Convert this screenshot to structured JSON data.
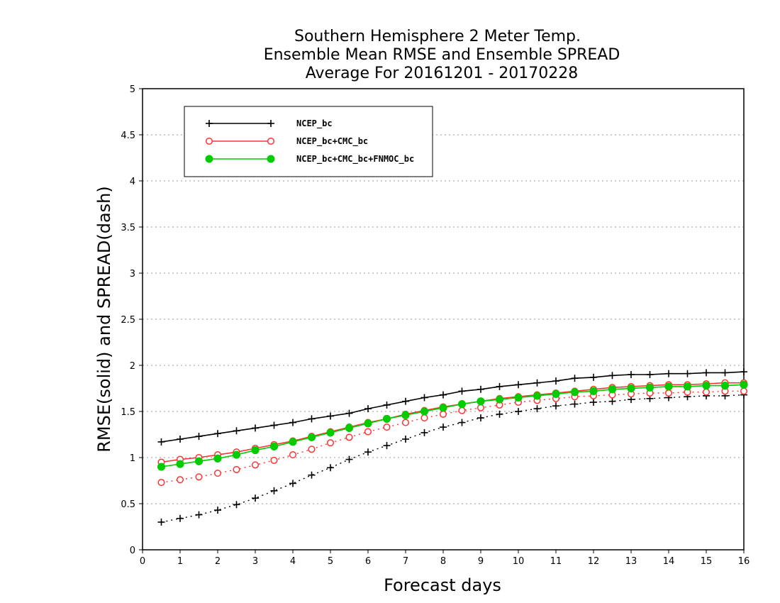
{
  "chart_data": {
    "type": "line",
    "title": [
      "Southern Hemisphere 2 Meter Temp.",
      "Ensemble Mean RMSE and Ensemble SPREAD",
      "Average For 20161201 - 20170228"
    ],
    "xlabel": "Forecast days",
    "ylabel": "RMSE(solid) and SPREAD(dash)",
    "xlim": [
      0,
      16
    ],
    "ylim": [
      0,
      5
    ],
    "xticks": [
      "0",
      "1",
      "2",
      "3",
      "4",
      "5",
      "6",
      "7",
      "8",
      "9",
      "10",
      "11",
      "12",
      "13",
      "14",
      "15",
      "16"
    ],
    "yticks": [
      "0",
      "0.5",
      "1",
      "1.5",
      "2",
      "2.5",
      "3",
      "3.5",
      "4",
      "4.5",
      "5"
    ],
    "grid": "horizontal dotted",
    "legend_position": "top-left",
    "x": [
      0.5,
      1,
      1.5,
      2,
      2.5,
      3,
      3.5,
      4,
      4.5,
      5,
      5.5,
      6,
      6.5,
      7,
      7.5,
      8,
      8.5,
      9,
      9.5,
      10,
      10.5,
      11,
      11.5,
      12,
      12.5,
      13,
      13.5,
      14,
      14.5,
      15,
      15.5,
      16
    ],
    "series": [
      {
        "name": "NCEP_bc",
        "color": "#000000",
        "marker": "plus",
        "rmse": [
          1.17,
          1.2,
          1.23,
          1.26,
          1.29,
          1.32,
          1.35,
          1.38,
          1.42,
          1.45,
          1.48,
          1.53,
          1.57,
          1.61,
          1.65,
          1.68,
          1.72,
          1.74,
          1.77,
          1.79,
          1.81,
          1.83,
          1.86,
          1.87,
          1.89,
          1.9,
          1.9,
          1.91,
          1.91,
          1.92,
          1.92,
          1.93
        ],
        "spread": [
          0.3,
          0.34,
          0.38,
          0.43,
          0.49,
          0.56,
          0.64,
          0.72,
          0.81,
          0.89,
          0.98,
          1.06,
          1.13,
          1.2,
          1.27,
          1.33,
          1.38,
          1.43,
          1.47,
          1.5,
          1.53,
          1.56,
          1.58,
          1.6,
          1.61,
          1.63,
          1.64,
          1.65,
          1.66,
          1.67,
          1.67,
          1.68
        ]
      },
      {
        "name": "NCEP_bc+CMC_bc",
        "color": "#ff3333",
        "marker": "open-circle",
        "rmse": [
          0.95,
          0.98,
          1.0,
          1.03,
          1.06,
          1.1,
          1.14,
          1.18,
          1.23,
          1.28,
          1.33,
          1.38,
          1.42,
          1.47,
          1.51,
          1.55,
          1.58,
          1.61,
          1.64,
          1.66,
          1.68,
          1.7,
          1.72,
          1.74,
          1.76,
          1.77,
          1.78,
          1.79,
          1.79,
          1.8,
          1.81,
          1.81
        ],
        "spread": [
          0.73,
          0.76,
          0.79,
          0.83,
          0.87,
          0.92,
          0.97,
          1.03,
          1.09,
          1.16,
          1.22,
          1.28,
          1.33,
          1.38,
          1.43,
          1.47,
          1.51,
          1.54,
          1.57,
          1.6,
          1.62,
          1.64,
          1.66,
          1.67,
          1.68,
          1.69,
          1.7,
          1.7,
          1.71,
          1.71,
          1.72,
          1.72
        ]
      },
      {
        "name": "NCEP_bc+CMC_bc+FNMOC_bc",
        "color": "#00cc00",
        "marker": "filled-circle",
        "rmse": [
          0.9,
          0.93,
          0.96,
          0.99,
          1.03,
          1.08,
          1.12,
          1.17,
          1.22,
          1.27,
          1.32,
          1.37,
          1.42,
          1.46,
          1.5,
          1.54,
          1.58,
          1.61,
          1.63,
          1.65,
          1.67,
          1.69,
          1.71,
          1.72,
          1.74,
          1.75,
          1.76,
          1.77,
          1.77,
          1.78,
          1.78,
          1.79
        ],
        "spread": [
          0.9,
          0.93,
          0.96,
          0.99,
          1.03,
          1.08,
          1.12,
          1.17,
          1.22,
          1.27,
          1.32,
          1.37,
          1.42,
          1.46,
          1.5,
          1.54,
          1.58,
          1.61,
          1.63,
          1.65,
          1.67,
          1.69,
          1.71,
          1.72,
          1.74,
          1.75,
          1.76,
          1.77,
          1.77,
          1.78,
          1.78,
          1.79
        ]
      }
    ]
  }
}
